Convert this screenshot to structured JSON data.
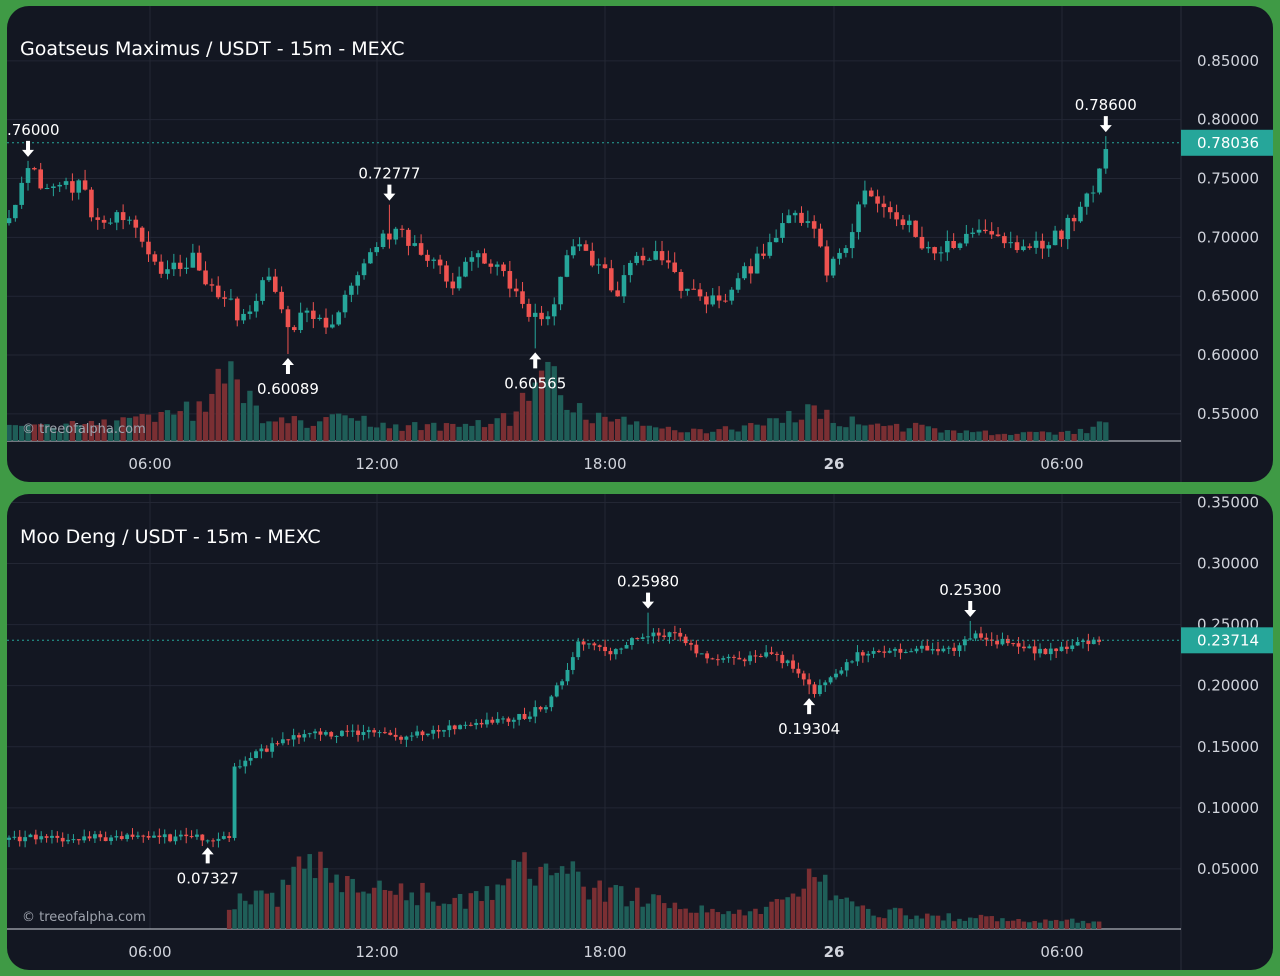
{
  "watermark": "© treeofalpha.com",
  "colors": {
    "background": "#131722",
    "grid": "#232734",
    "up": "#26a69a",
    "down": "#ef5350",
    "volume_up": "#1f5e58",
    "volume_down": "#7a2f33",
    "price_label_bg": "#26a69a",
    "text": "#d1d4dc",
    "annotation": "#ffffff"
  },
  "time_axis": {
    "labels": [
      "06:00",
      "12:00",
      "18:00",
      "26",
      "06:00"
    ],
    "bold_index": 3
  },
  "chart_data": [
    {
      "type": "candlestick",
      "title": "Goatseus Maximus / USDT - 15m - MEXC",
      "y_ticks": [
        "0.85000",
        "0.80000",
        "0.75000",
        "0.70000",
        "0.65000",
        "0.60000",
        "0.55000"
      ],
      "ylim": [
        0.538,
        0.866
      ],
      "current_price": "0.78036",
      "current_price_value": 0.78036,
      "annotations": [
        {
          "label": ".76000",
          "value": 0.76,
          "direction": "down",
          "candle": 3
        },
        {
          "label": "0.72777",
          "value": 0.72777,
          "direction": "down",
          "candle": 60
        },
        {
          "label": "0.60089",
          "value": 0.60089,
          "direction": "up",
          "candle": 44
        },
        {
          "label": "0.60565",
          "value": 0.60565,
          "direction": "up",
          "candle": 83
        },
        {
          "label": "0.78600",
          "value": 0.786,
          "direction": "down",
          "candle": 173
        }
      ],
      "candle_count": 174,
      "volume_max": 100,
      "anchors": [
        [
          0,
          0.723
        ],
        [
          3,
          0.757
        ],
        [
          6,
          0.742
        ],
        [
          11,
          0.745
        ],
        [
          14,
          0.712
        ],
        [
          18,
          0.716
        ],
        [
          24,
          0.672
        ],
        [
          29,
          0.682
        ],
        [
          33,
          0.652
        ],
        [
          37,
          0.631
        ],
        [
          41,
          0.666
        ],
        [
          44,
          0.622
        ],
        [
          47,
          0.634
        ],
        [
          51,
          0.623
        ],
        [
          55,
          0.672
        ],
        [
          59,
          0.698
        ],
        [
          62,
          0.703
        ],
        [
          66,
          0.682
        ],
        [
          70,
          0.662
        ],
        [
          74,
          0.686
        ],
        [
          78,
          0.667
        ],
        [
          82,
          0.632
        ],
        [
          85,
          0.627
        ],
        [
          89,
          0.698
        ],
        [
          93,
          0.676
        ],
        [
          96,
          0.653
        ],
        [
          99,
          0.686
        ],
        [
          103,
          0.682
        ],
        [
          107,
          0.653
        ],
        [
          111,
          0.645
        ],
        [
          114,
          0.653
        ],
        [
          118,
          0.684
        ],
        [
          122,
          0.712
        ],
        [
          126,
          0.716
        ],
        [
          129,
          0.672
        ],
        [
          132,
          0.692
        ],
        [
          135,
          0.736
        ],
        [
          138,
          0.726
        ],
        [
          142,
          0.708
        ],
        [
          146,
          0.684
        ],
        [
          150,
          0.7
        ],
        [
          154,
          0.706
        ],
        [
          158,
          0.694
        ],
        [
          162,
          0.696
        ],
        [
          166,
          0.702
        ],
        [
          169,
          0.728
        ],
        [
          171,
          0.745
        ],
        [
          173,
          0.78
        ]
      ],
      "volume_anchors": [
        [
          0,
          18
        ],
        [
          10,
          22
        ],
        [
          20,
          28
        ],
        [
          30,
          45
        ],
        [
          35,
          100
        ],
        [
          38,
          55
        ],
        [
          42,
          25
        ],
        [
          55,
          30
        ],
        [
          60,
          22
        ],
        [
          70,
          20
        ],
        [
          80,
          35
        ],
        [
          83,
          85
        ],
        [
          85,
          100
        ],
        [
          88,
          45
        ],
        [
          95,
          30
        ],
        [
          100,
          20
        ],
        [
          110,
          15
        ],
        [
          120,
          25
        ],
        [
          126,
          45
        ],
        [
          130,
          30
        ],
        [
          140,
          22
        ],
        [
          150,
          12
        ],
        [
          160,
          10
        ],
        [
          170,
          15
        ],
        [
          173,
          25
        ]
      ]
    },
    {
      "type": "candlestick",
      "title": "Moo Deng / USDT - 15m - MEXC",
      "y_ticks": [
        "0.35000",
        "0.30000",
        "0.25000",
        "0.20000",
        "0.15000",
        "0.10000",
        "0.05000"
      ],
      "ylim": [
        0.0,
        0.352
      ],
      "current_price": "0.23714",
      "current_price_value": 0.23714,
      "annotations": [
        {
          "label": "0.07327",
          "value": 0.07327,
          "direction": "up",
          "candle": 37
        },
        {
          "label": "0.25980",
          "value": 0.2598,
          "direction": "down",
          "candle": 119
        },
        {
          "label": "0.19304",
          "value": 0.19304,
          "direction": "up",
          "candle": 149
        },
        {
          "label": "0.25300",
          "value": 0.253,
          "direction": "down",
          "candle": 179
        }
      ],
      "candle_count": 204,
      "volume_max": 100,
      "anchors": [
        [
          0,
          0.0755
        ],
        [
          40,
          0.0755
        ],
        [
          41,
          0.077
        ],
        [
          42,
          0.131
        ],
        [
          45,
          0.143
        ],
        [
          50,
          0.152
        ],
        [
          55,
          0.161
        ],
        [
          60,
          0.16
        ],
        [
          66,
          0.162
        ],
        [
          72,
          0.158
        ],
        [
          78,
          0.162
        ],
        [
          84,
          0.166
        ],
        [
          90,
          0.17
        ],
        [
          96,
          0.175
        ],
        [
          100,
          0.185
        ],
        [
          104,
          0.21
        ],
        [
          106,
          0.236
        ],
        [
          112,
          0.228
        ],
        [
          118,
          0.24
        ],
        [
          124,
          0.242
        ],
        [
          130,
          0.222
        ],
        [
          136,
          0.22
        ],
        [
          142,
          0.226
        ],
        [
          146,
          0.216
        ],
        [
          150,
          0.196
        ],
        [
          154,
          0.21
        ],
        [
          158,
          0.226
        ],
        [
          164,
          0.228
        ],
        [
          170,
          0.23
        ],
        [
          176,
          0.23
        ],
        [
          180,
          0.242
        ],
        [
          186,
          0.234
        ],
        [
          192,
          0.228
        ],
        [
          198,
          0.232
        ],
        [
          203,
          0.237
        ]
      ],
      "volume_anchors": [
        [
          0,
          0
        ],
        [
          40,
          0
        ],
        [
          42,
          38
        ],
        [
          50,
          38
        ],
        [
          55,
          100
        ],
        [
          60,
          70
        ],
        [
          65,
          45
        ],
        [
          72,
          55
        ],
        [
          80,
          40
        ],
        [
          90,
          45
        ],
        [
          95,
          75
        ],
        [
          102,
          95
        ],
        [
          106,
          60
        ],
        [
          112,
          50
        ],
        [
          118,
          45
        ],
        [
          124,
          30
        ],
        [
          130,
          25
        ],
        [
          140,
          20
        ],
        [
          149,
          75
        ],
        [
          154,
          40
        ],
        [
          160,
          25
        ],
        [
          170,
          18
        ],
        [
          180,
          15
        ],
        [
          190,
          10
        ],
        [
          203,
          12
        ]
      ]
    }
  ]
}
